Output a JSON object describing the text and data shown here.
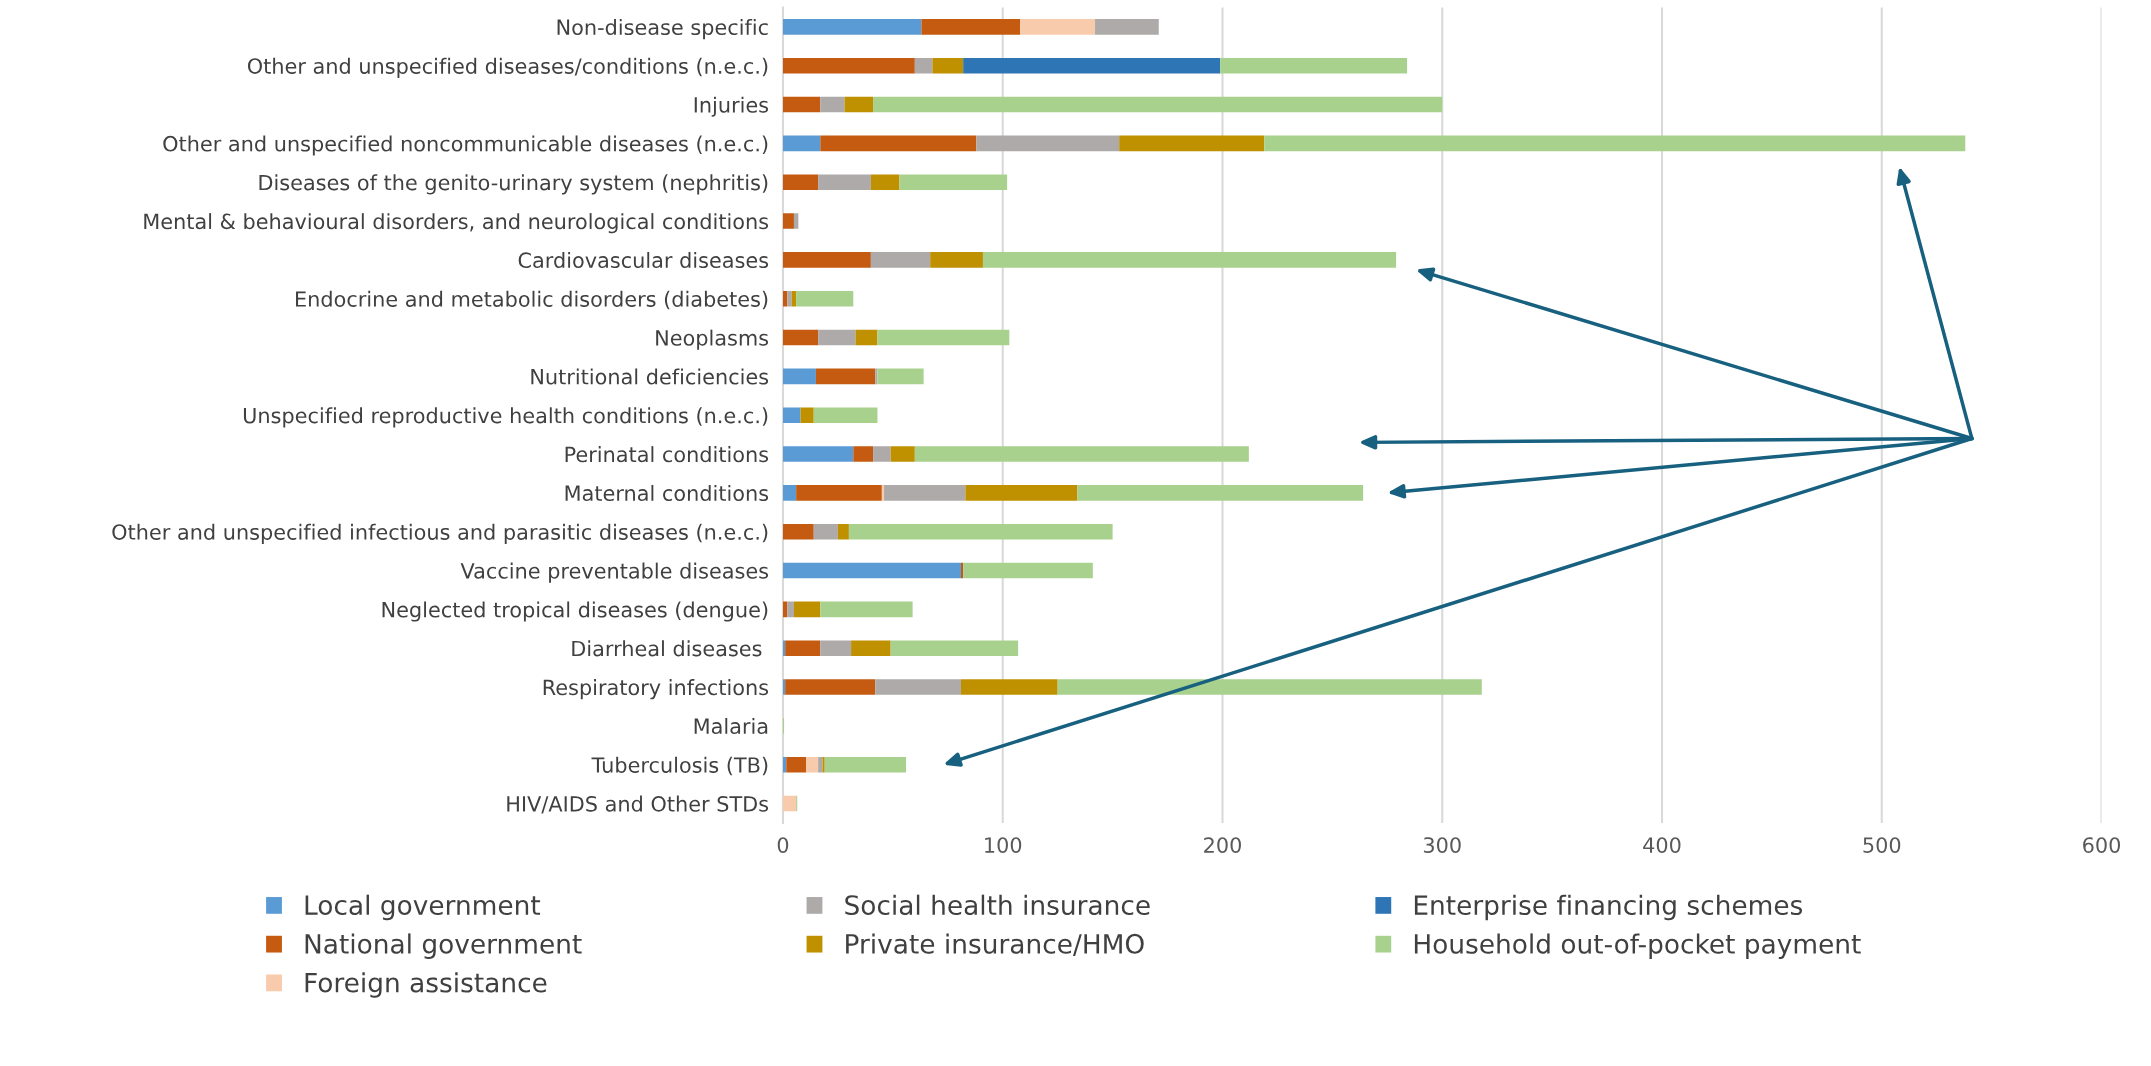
{
  "chart_data": {
    "type": "bar",
    "orientation": "horizontal",
    "stacked": true,
    "categories": [
      "Non-disease specific",
      "Other and unspecified diseases/conditions (n.e.c.)",
      "Injuries",
      "Other and unspecified noncommunicable diseases (n.e.c.)",
      "Diseases of the genito-urinary system (nephritis)",
      "Mental & behavioural disorders, and neurological conditions",
      "Cardiovascular diseases",
      "Endocrine and metabolic disorders (diabetes)",
      "Neoplasms",
      "Nutritional deficiencies",
      "Unspecified reproductive health conditions (n.e.c.)",
      "Perinatal conditions",
      "Maternal conditions",
      "Other and unspecified infectious and parasitic diseases (n.e.c.)",
      "Vaccine preventable diseases",
      "Neglected tropical diseases (dengue)",
      "Diarrheal diseases ",
      "Respiratory infections",
      "Malaria",
      "Tuberculosis (TB)",
      "HIV/AIDS and Other STDs"
    ],
    "series": [
      {
        "name": "Local government",
        "color": "#5b9bd5",
        "values": [
          63,
          0,
          0,
          17,
          0,
          0,
          0,
          0,
          0,
          15,
          8,
          32,
          6,
          0,
          81,
          0,
          1,
          1,
          0,
          1.5,
          0
        ]
      },
      {
        "name": "National government",
        "color": "#c55a11",
        "values": [
          45,
          60,
          17,
          71,
          16,
          5,
          40,
          2,
          16,
          27,
          0,
          9,
          39,
          14,
          1,
          2,
          16,
          41,
          0,
          9,
          0
        ]
      },
      {
        "name": "Foreign assistance",
        "color": "#f8cbad",
        "values": [
          34,
          0,
          0,
          0,
          0,
          0,
          0,
          0,
          0,
          0,
          0,
          0,
          1,
          0,
          0,
          0,
          0,
          0,
          0,
          5.5,
          6
        ]
      },
      {
        "name": "Social health insurance",
        "color": "#aeaaaa",
        "values": [
          29,
          8,
          11,
          65,
          24,
          2,
          27,
          2,
          17,
          1,
          0,
          8,
          37,
          11,
          0,
          3,
          14,
          39,
          0,
          2,
          0
        ]
      },
      {
        "name": "Private insurance/HMO",
        "color": "#bf9000",
        "values": [
          0,
          14,
          13,
          66,
          13,
          0,
          24,
          2,
          10,
          0,
          6,
          11,
          51,
          5,
          0,
          12,
          18,
          44,
          0,
          1,
          0
        ]
      },
      {
        "name": "Enterprise financing schemes",
        "color": "#2e75b6",
        "values": [
          0,
          117,
          0,
          0,
          0,
          0,
          0,
          0,
          0,
          0,
          0,
          0,
          0,
          0,
          0,
          0,
          0,
          0,
          0,
          0,
          0
        ]
      },
      {
        "name": "Household out-of-pocket payment",
        "color": "#a9d18e",
        "values": [
          0,
          85,
          259,
          319,
          49,
          0,
          188,
          26,
          60,
          21,
          29,
          152,
          130,
          120,
          59,
          42,
          58,
          193,
          0.5,
          37,
          0.5
        ]
      }
    ],
    "xlim": [
      0,
      600
    ],
    "xticks": [
      0,
      100,
      200,
      300,
      400,
      500,
      600
    ],
    "grid": "x",
    "legend": "bottom"
  }
}
